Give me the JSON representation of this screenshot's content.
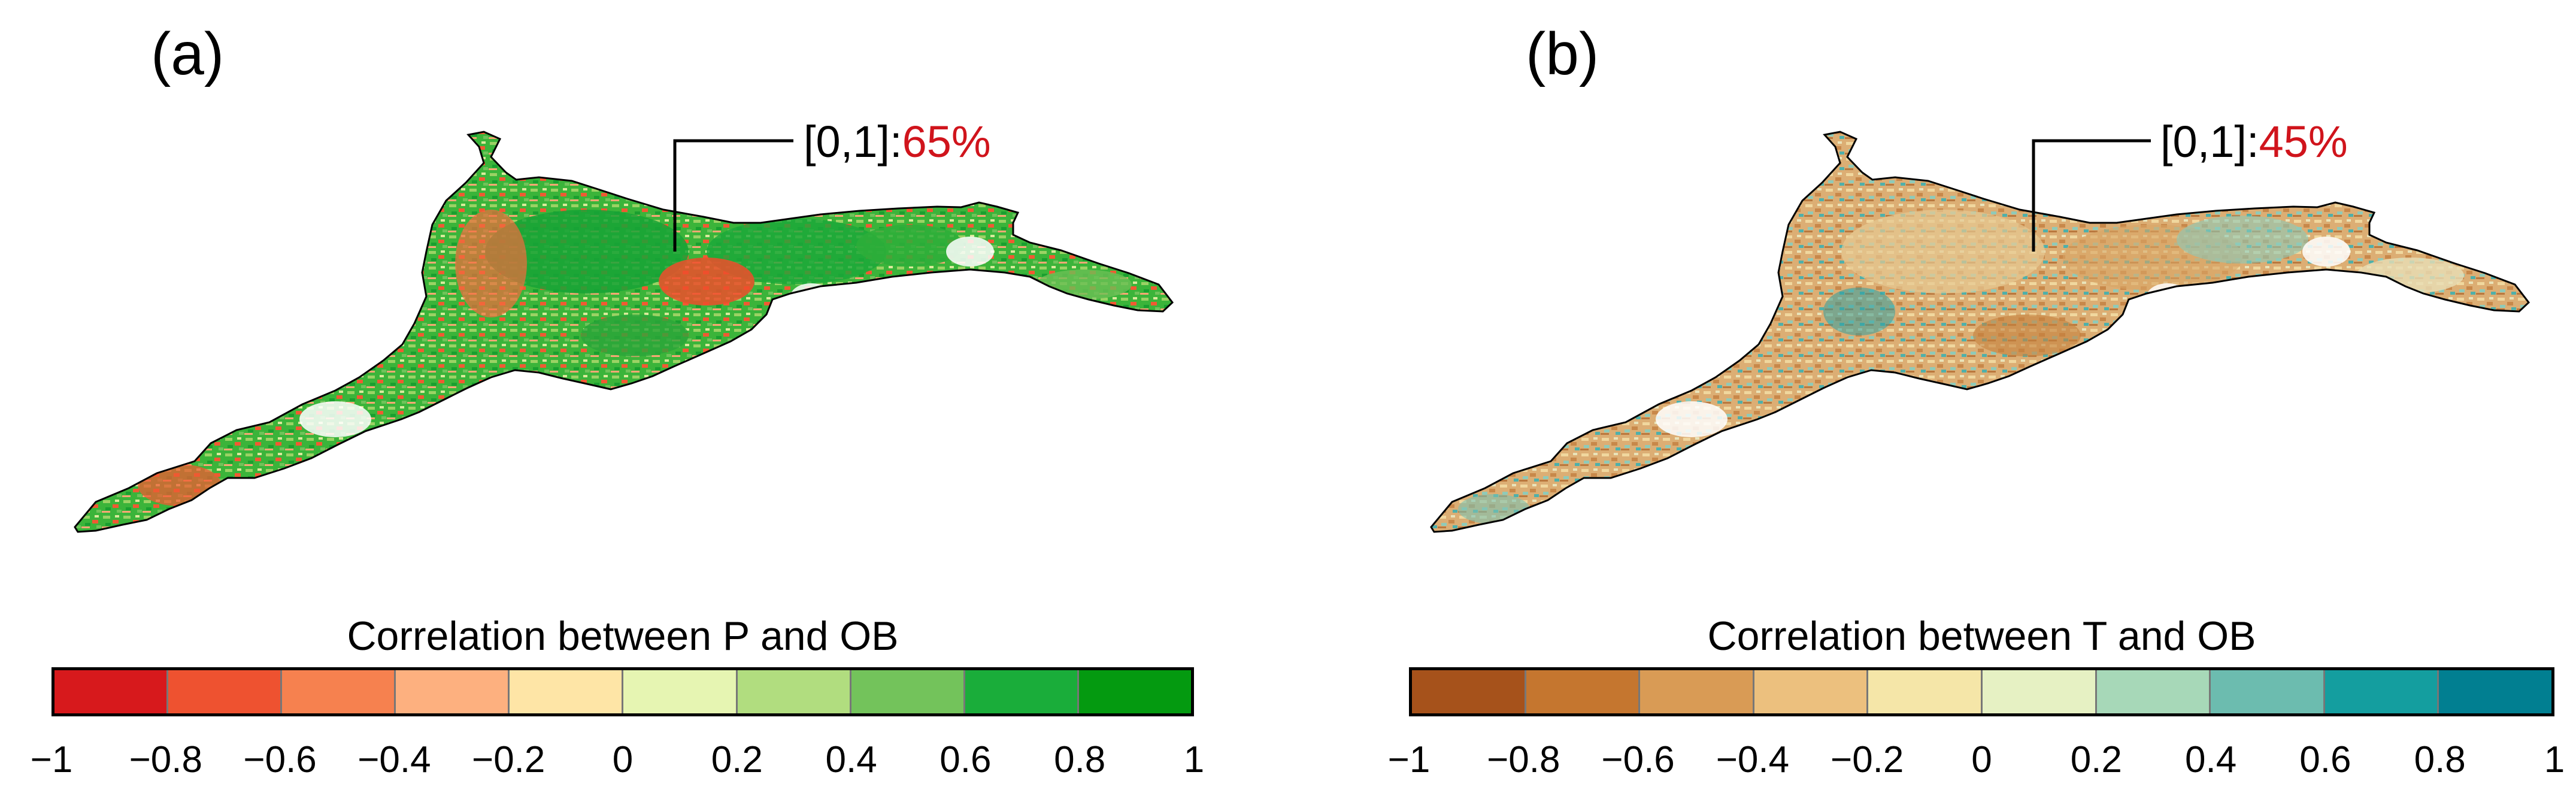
{
  "panels": [
    {
      "label": "(a)",
      "callout": {
        "range": "[0,1]:",
        "percent": "65%"
      },
      "map_palette": [
        "#1fa83a",
        "#4cbf3c",
        "#8ccf5a",
        "#d7e89a",
        "#f26a3a",
        "#e8452c",
        "#f7b98a",
        "#0f9e2e"
      ],
      "legend": {
        "title": "Correlation between P and OB",
        "colors": [
          "#d7191c",
          "#ee5230",
          "#f6814f",
          "#fdb07f",
          "#fee5a6",
          "#e6f5b2",
          "#b1dd7f",
          "#73c35b",
          "#1aad3a",
          "#049a10"
        ],
        "ticks": [
          "−1",
          "−0.8",
          "−0.6",
          "−0.4",
          "−0.2",
          "0",
          "0.2",
          "0.4",
          "0.6",
          "0.8",
          "1"
        ]
      }
    },
    {
      "label": "(b)",
      "callout": {
        "range": "[0,1]:",
        "percent": "45%"
      },
      "map_palette": [
        "#d9a56a",
        "#c98a4c",
        "#ecc587",
        "#f4e2a9",
        "#b6dcc0",
        "#6dbbb0",
        "#2ea3a6",
        "#e9dfb5"
      ],
      "legend": {
        "title": "Correlation between T and OB",
        "colors": [
          "#a6521b",
          "#c5762f",
          "#d99b55",
          "#ecc07e",
          "#f5e6a8",
          "#e6f1c3",
          "#a7d8b8",
          "#6cbcaf",
          "#149e9f",
          "#017f91"
        ],
        "ticks": [
          "−1",
          "−0.8",
          "−0.6",
          "−0.4",
          "−0.2",
          "0",
          "0.2",
          "0.4",
          "0.6",
          "0.8",
          "1"
        ]
      }
    }
  ]
}
